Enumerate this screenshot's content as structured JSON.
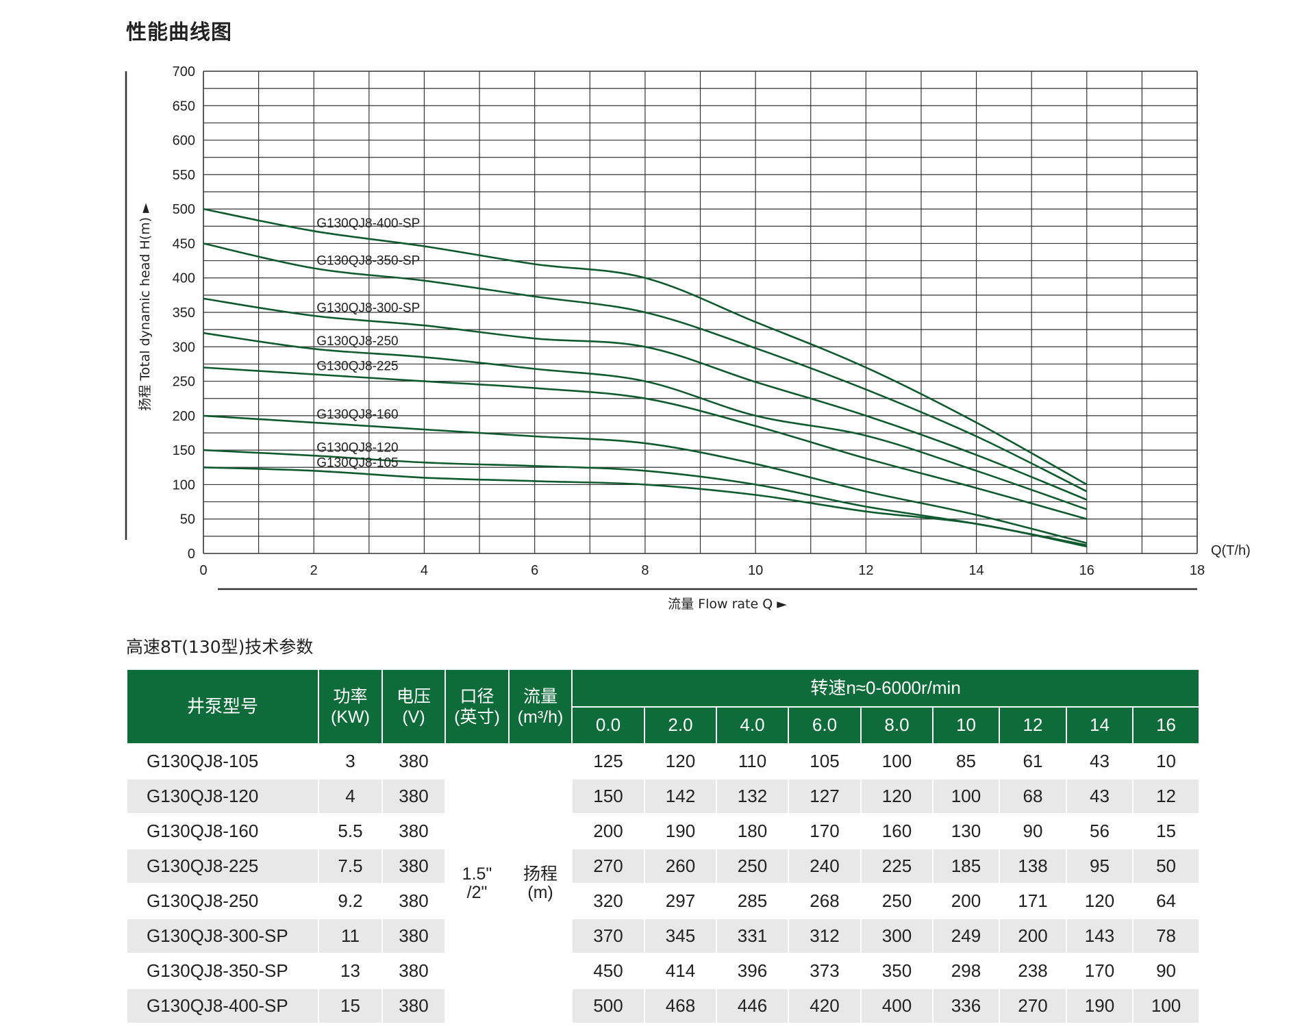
{
  "page_title": "性能曲线图",
  "chart_data": {
    "type": "line",
    "title": "",
    "xlabel": "流量 Flow rate Q ►",
    "x_unit_label": "Q(T/h)",
    "ylabel": "扬程 Total dynamic head H(m) ►",
    "xlim": [
      0,
      18
    ],
    "ylim": [
      0,
      700
    ],
    "x_ticks": [
      "0",
      "2",
      "4",
      "6",
      "8",
      "10",
      "12",
      "14",
      "16",
      "18"
    ],
    "y_ticks": [
      "0",
      "50",
      "100",
      "150",
      "200",
      "250",
      "300",
      "350",
      "400",
      "450",
      "500",
      "550",
      "600",
      "650",
      "700"
    ],
    "grid": true,
    "x": [
      0,
      2,
      4,
      6,
      8,
      10,
      12,
      14,
      16
    ],
    "line_color": "#0e5a2e",
    "series": [
      {
        "name": "G130QJ8-400-SP",
        "values": [
          500,
          468,
          446,
          420,
          400,
          336,
          270,
          190,
          100
        ]
      },
      {
        "name": "G130QJ8-350-SP",
        "values": [
          450,
          414,
          396,
          373,
          350,
          298,
          238,
          170,
          90
        ]
      },
      {
        "name": "G130QJ8-300-SP",
        "values": [
          370,
          345,
          331,
          312,
          300,
          249,
          200,
          143,
          78
        ]
      },
      {
        "name": "G130QJ8-250",
        "values": [
          320,
          297,
          285,
          268,
          250,
          200,
          171,
          120,
          64
        ]
      },
      {
        "name": "G130QJ8-225",
        "values": [
          270,
          260,
          250,
          240,
          225,
          185,
          138,
          95,
          50
        ]
      },
      {
        "name": "G130QJ8-160",
        "values": [
          200,
          190,
          180,
          170,
          160,
          130,
          90,
          56,
          15
        ]
      },
      {
        "name": "G130QJ8-120",
        "values": [
          150,
          142,
          132,
          127,
          120,
          100,
          68,
          43,
          12
        ]
      },
      {
        "name": "G130QJ8-105",
        "values": [
          125,
          120,
          110,
          105,
          100,
          85,
          61,
          43,
          10
        ]
      }
    ]
  },
  "table": {
    "title": "高速8T(130型)技术参数",
    "header": {
      "model": "井泵型号",
      "power": [
        "功率",
        "(KW)"
      ],
      "voltage": [
        "电压",
        "(V)"
      ],
      "bore": [
        "口径",
        "(英寸)"
      ],
      "flow": [
        "流量",
        "(m³/h)"
      ],
      "speed": "转速n≈0-6000r/min",
      "flow_points": [
        "0.0",
        "2.0",
        "4.0",
        "6.0",
        "8.0",
        "10",
        "12",
        "14",
        "16"
      ]
    },
    "bore_value": [
      "1.5\"",
      "/2\""
    ],
    "head_label": [
      "扬程",
      "(m)"
    ],
    "rows": [
      {
        "model": "G130QJ8-105",
        "power": "3",
        "voltage": "380",
        "heads": [
          "125",
          "120",
          "110",
          "105",
          "100",
          "85",
          "61",
          "43",
          "10"
        ]
      },
      {
        "model": "G130QJ8-120",
        "power": "4",
        "voltage": "380",
        "heads": [
          "150",
          "142",
          "132",
          "127",
          "120",
          "100",
          "68",
          "43",
          "12"
        ]
      },
      {
        "model": "G130QJ8-160",
        "power": "5.5",
        "voltage": "380",
        "heads": [
          "200",
          "190",
          "180",
          "170",
          "160",
          "130",
          "90",
          "56",
          "15"
        ]
      },
      {
        "model": "G130QJ8-225",
        "power": "7.5",
        "voltage": "380",
        "heads": [
          "270",
          "260",
          "250",
          "240",
          "225",
          "185",
          "138",
          "95",
          "50"
        ]
      },
      {
        "model": "G130QJ8-250",
        "power": "9.2",
        "voltage": "380",
        "heads": [
          "320",
          "297",
          "285",
          "268",
          "250",
          "200",
          "171",
          "120",
          "64"
        ]
      },
      {
        "model": "G130QJ8-300-SP",
        "power": "11",
        "voltage": "380",
        "heads": [
          "370",
          "345",
          "331",
          "312",
          "300",
          "249",
          "200",
          "143",
          "78"
        ]
      },
      {
        "model": "G130QJ8-350-SP",
        "power": "13",
        "voltage": "380",
        "heads": [
          "450",
          "414",
          "396",
          "373",
          "350",
          "298",
          "238",
          "170",
          "90"
        ]
      },
      {
        "model": "G130QJ8-400-SP",
        "power": "15",
        "voltage": "380",
        "heads": [
          "500",
          "468",
          "446",
          "420",
          "400",
          "336",
          "270",
          "190",
          "100"
        ]
      }
    ]
  }
}
